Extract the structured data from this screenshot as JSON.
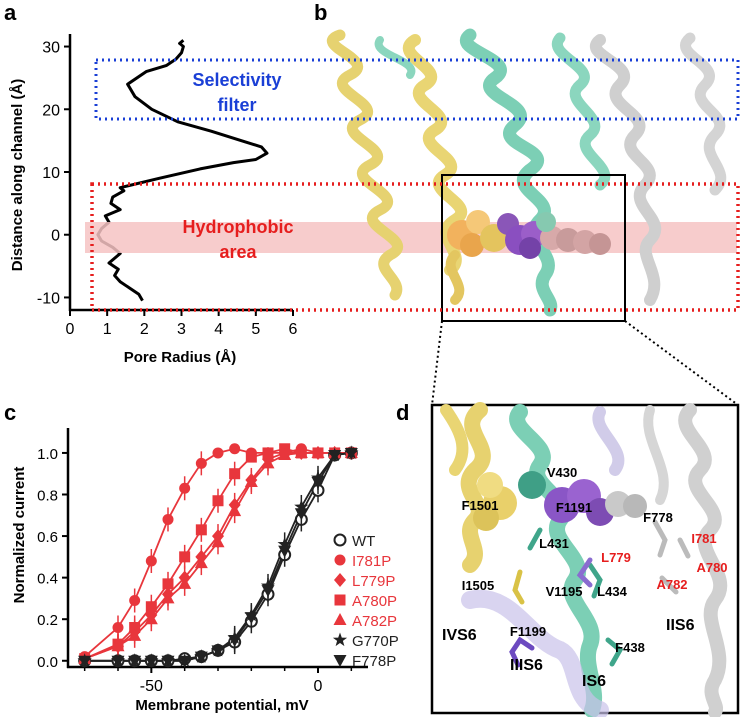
{
  "panels": {
    "a": {
      "letter": "a",
      "ylabel": "Distance along channel (Å)",
      "xlabel": "Pore Radius (Å)",
      "yticks": [
        "30",
        "20",
        "10",
        "0",
        "-10"
      ],
      "xticks": [
        "0",
        "1",
        "2",
        "3",
        "4",
        "5",
        "6"
      ]
    },
    "b": {
      "letter": "b",
      "selectivity_line1": "Selectivity",
      "selectivity_line2": "filter",
      "hydrophobic_line1": "Hydrophobic",
      "hydrophobic_line2": "area"
    },
    "c": {
      "letter": "c",
      "ylabel": "Normalized current",
      "xlabel": "Membrane potential, mV",
      "yticks": [
        "0.0",
        "0.2",
        "0.4",
        "0.6",
        "0.8",
        "1.0"
      ],
      "xticks": [
        "-50",
        "0"
      ],
      "legend": [
        "WT",
        "I781P",
        "L779P",
        "A780P",
        "A782P",
        "G770P",
        "F778P"
      ]
    },
    "d": {
      "letter": "d",
      "labels": {
        "V430": "V430",
        "F1501": "F1501",
        "F1191": "F1191",
        "F778": "F778",
        "L431": "L431",
        "L779": "L779",
        "I781": "I781",
        "I1505": "I1505",
        "V1195": "V1195",
        "L434": "L434",
        "A782": "A782",
        "A780": "A780",
        "F1199": "F1199",
        "F438": "F438",
        "IVS6": "IVS6",
        "IIIS6": "IIIS6",
        "IS6": "IS6",
        "IIS6": "IIS6"
      }
    }
  },
  "colors": {
    "selectivity": "#1a3fd6",
    "hydrophobic": "#e61e1e",
    "mutant": "#e8363c",
    "wt": "#222222"
  },
  "chart_data": [
    {
      "type": "line",
      "panel": "a",
      "xlabel": "Pore Radius (Å)",
      "ylabel": "Distance along channel (Å)",
      "xlim": [
        0,
        6
      ],
      "ylim": [
        -12,
        32
      ],
      "series": [
        {
          "x": [
            1.95,
            1.85,
            1.6,
            1.35,
            1.2,
            1.3,
            1.05,
            1.35,
            1.15,
            0.85,
            0.75,
            0.85,
            1.05,
            0.95,
            1.35,
            1.1,
            1.15,
            1.45,
            1.35,
            2.4,
            3.5,
            4.4,
            5.0,
            5.3,
            5.15,
            4.6,
            3.8,
            2.9,
            2.2,
            1.75,
            1.55,
            2.05,
            2.6,
            2.85,
            3.0,
            3.05,
            2.95,
            3.05
          ],
          "y": [
            -10.5,
            -9.5,
            -8.5,
            -7.5,
            -6.5,
            -5.5,
            -4.5,
            -3,
            -2,
            -1,
            0,
            1,
            2,
            3,
            4,
            5,
            6,
            7,
            7.5,
            9,
            10.5,
            11.5,
            12,
            13,
            14,
            15,
            16.5,
            18,
            20,
            22,
            24,
            26,
            27,
            28,
            29,
            30,
            30.5,
            31
          ]
        }
      ]
    },
    {
      "type": "line",
      "panel": "c",
      "xlabel": "Membrane potential, mV",
      "ylabel": "Normalized current",
      "xlim": [
        -75,
        15
      ],
      "ylim": [
        -0.03,
        1.12
      ],
      "x": [
        -70,
        -60,
        -55,
        -50,
        -45,
        -40,
        -35,
        -30,
        -25,
        -20,
        -15,
        -10,
        -5,
        0,
        5,
        10
      ],
      "series": [
        {
          "name": "WT",
          "marker": "circle-open",
          "color": "#222222",
          "values": [
            0.0,
            0.0,
            0.0,
            0.0,
            0.0,
            0.01,
            0.02,
            0.05,
            0.09,
            0.19,
            0.32,
            0.51,
            0.68,
            0.82,
            0.99,
            1.0
          ]
        },
        {
          "name": "I781P",
          "marker": "circle",
          "color": "#e8363c",
          "values": [
            0.02,
            0.16,
            0.29,
            0.48,
            0.68,
            0.83,
            0.95,
            1.0,
            1.02,
            1.0,
            1.0,
            1.0,
            1.02,
            1.0,
            1.0,
            1.0
          ]
        },
        {
          "name": "L779P",
          "marker": "diamond",
          "color": "#e8363c",
          "values": [
            0.01,
            0.07,
            0.14,
            0.22,
            0.32,
            0.4,
            0.5,
            0.6,
            0.75,
            0.87,
            0.97,
            1.0,
            1.0,
            1.0,
            1.0,
            1.0
          ]
        },
        {
          "name": "A780P",
          "marker": "square",
          "color": "#e8363c",
          "values": [
            0.01,
            0.08,
            0.16,
            0.26,
            0.37,
            0.5,
            0.63,
            0.77,
            0.9,
            0.98,
            1.0,
            1.02,
            1.0,
            1.0,
            1.0,
            1.0
          ]
        },
        {
          "name": "A782P",
          "marker": "triangle-up",
          "color": "#e8363c",
          "values": [
            0.01,
            0.07,
            0.12,
            0.2,
            0.3,
            0.37,
            0.47,
            0.57,
            0.72,
            0.86,
            0.95,
            0.99,
            1.0,
            1.0,
            1.0,
            1.0
          ]
        },
        {
          "name": "G770P",
          "marker": "star",
          "color": "#222222",
          "values": [
            0.0,
            0.0,
            0.0,
            0.0,
            0.0,
            0.0,
            0.02,
            0.05,
            0.11,
            0.22,
            0.36,
            0.56,
            0.74,
            0.88,
            0.99,
            1.0
          ]
        },
        {
          "name": "F778P",
          "marker": "triangle-down",
          "color": "#222222",
          "values": [
            0.0,
            0.0,
            0.0,
            0.0,
            0.0,
            0.0,
            0.02,
            0.05,
            0.1,
            0.21,
            0.34,
            0.53,
            0.71,
            0.86,
            0.99,
            1.0
          ]
        }
      ]
    }
  ]
}
